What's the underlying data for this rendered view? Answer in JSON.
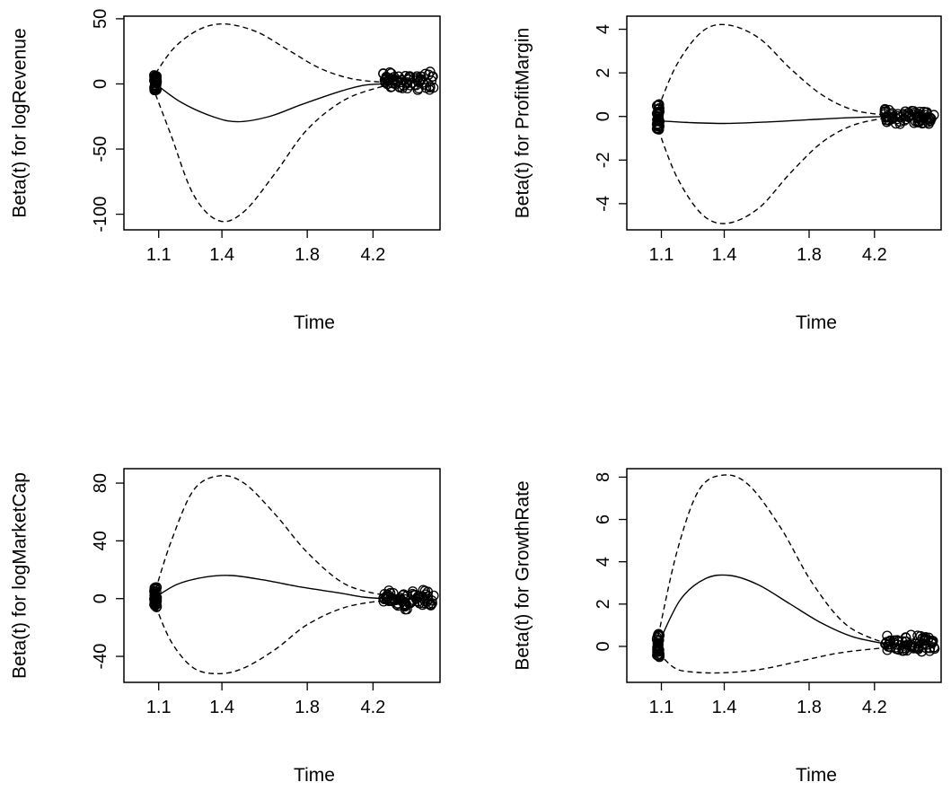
{
  "chart_data": [
    {
      "type": "line",
      "title": "",
      "xlabel": "Time",
      "ylabel": "Beta(t) for logRevenue",
      "x_tick_labels": [
        "1.1",
        "1.4",
        "1.8",
        "4.2"
      ],
      "y_ticks": [
        50,
        0,
        -50,
        -100
      ],
      "y_tick_labels": [
        "50",
        "0",
        "-50",
        "-100"
      ],
      "ylim": [
        -112,
        52
      ],
      "grid": false,
      "legend": "none",
      "series": [
        {
          "style": "solid",
          "points": [
            [
              0.1,
              0
            ],
            [
              0.18,
              -14
            ],
            [
              0.28,
              -25
            ],
            [
              0.36,
              -29
            ],
            [
              0.46,
              -25
            ],
            [
              0.56,
              -16
            ],
            [
              0.68,
              -6
            ],
            [
              0.76,
              -1
            ],
            [
              0.83,
              0
            ]
          ]
        },
        {
          "style": "dashed",
          "points": [
            [
              0.1,
              8
            ],
            [
              0.16,
              28
            ],
            [
              0.24,
              42
            ],
            [
              0.32,
              46
            ],
            [
              0.42,
              40
            ],
            [
              0.52,
              26
            ],
            [
              0.62,
              12
            ],
            [
              0.72,
              4
            ],
            [
              0.83,
              1
            ]
          ]
        },
        {
          "style": "dashed",
          "points": [
            [
              0.1,
              -8
            ],
            [
              0.15,
              -40
            ],
            [
              0.22,
              -85
            ],
            [
              0.3,
              -105
            ],
            [
              0.38,
              -98
            ],
            [
              0.48,
              -68
            ],
            [
              0.58,
              -35
            ],
            [
              0.7,
              -12
            ],
            [
              0.83,
              -1
            ]
          ]
        }
      ],
      "residual_points": {
        "cluster_at_x": 0.1,
        "cluster_y": [
          -6,
          7
        ],
        "tail_x": [
          0.82,
          0.98
        ],
        "tail_y": [
          -6,
          10
        ]
      }
    },
    {
      "type": "line",
      "title": "",
      "xlabel": "Time",
      "ylabel": "Beta(t) for ProfitMargin",
      "x_tick_labels": [
        "1.1",
        "1.4",
        "1.8",
        "4.2"
      ],
      "y_ticks": [
        4,
        2,
        0,
        -2,
        -4
      ],
      "y_tick_labels": [
        "4",
        "2",
        "0",
        "-2",
        "-4"
      ],
      "ylim": [
        -5.2,
        4.6
      ],
      "grid": false,
      "legend": "none",
      "series": [
        {
          "style": "solid",
          "points": [
            [
              0.1,
              -0.2
            ],
            [
              0.2,
              -0.28
            ],
            [
              0.32,
              -0.32
            ],
            [
              0.45,
              -0.25
            ],
            [
              0.58,
              -0.15
            ],
            [
              0.7,
              -0.06
            ],
            [
              0.83,
              0
            ]
          ]
        },
        {
          "style": "dashed",
          "points": [
            [
              0.1,
              0.4
            ],
            [
              0.16,
              2.4
            ],
            [
              0.24,
              3.9
            ],
            [
              0.32,
              4.2
            ],
            [
              0.42,
              3.6
            ],
            [
              0.52,
              2.2
            ],
            [
              0.62,
              1.0
            ],
            [
              0.72,
              0.3
            ],
            [
              0.83,
              0.05
            ]
          ]
        },
        {
          "style": "dashed",
          "points": [
            [
              0.1,
              -0.6
            ],
            [
              0.16,
              -2.8
            ],
            [
              0.24,
              -4.5
            ],
            [
              0.32,
              -4.9
            ],
            [
              0.42,
              -4.2
            ],
            [
              0.52,
              -2.6
            ],
            [
              0.62,
              -1.2
            ],
            [
              0.72,
              -0.4
            ],
            [
              0.83,
              -0.05
            ]
          ]
        }
      ],
      "residual_points": {
        "cluster_at_x": 0.1,
        "cluster_y": [
          -0.6,
          0.6
        ],
        "tail_x": [
          0.82,
          0.98
        ],
        "tail_y": [
          -0.5,
          0.4
        ]
      }
    },
    {
      "type": "line",
      "title": "",
      "xlabel": "Time",
      "ylabel": "Beta(t) for logMarketCap",
      "x_tick_labels": [
        "1.1",
        "1.4",
        "1.8",
        "4.2"
      ],
      "y_ticks": [
        80,
        40,
        0,
        -40
      ],
      "y_tick_labels": [
        "80",
        "40",
        "0",
        "-40"
      ],
      "ylim": [
        -58,
        90
      ],
      "grid": false,
      "legend": "none",
      "series": [
        {
          "style": "solid",
          "points": [
            [
              0.1,
              1
            ],
            [
              0.17,
              10
            ],
            [
              0.26,
              15
            ],
            [
              0.34,
              16
            ],
            [
              0.44,
              13
            ],
            [
              0.56,
              8
            ],
            [
              0.68,
              4
            ],
            [
              0.76,
              1
            ],
            [
              0.83,
              0
            ]
          ]
        },
        {
          "style": "dashed",
          "points": [
            [
              0.1,
              6
            ],
            [
              0.15,
              40
            ],
            [
              0.22,
              75
            ],
            [
              0.3,
              85
            ],
            [
              0.38,
              80
            ],
            [
              0.48,
              58
            ],
            [
              0.58,
              32
            ],
            [
              0.7,
              10
            ],
            [
              0.83,
              2
            ]
          ]
        },
        {
          "style": "dashed",
          "points": [
            [
              0.1,
              -5
            ],
            [
              0.15,
              -30
            ],
            [
              0.22,
              -48
            ],
            [
              0.3,
              -52
            ],
            [
              0.38,
              -48
            ],
            [
              0.48,
              -35
            ],
            [
              0.58,
              -18
            ],
            [
              0.7,
              -6
            ],
            [
              0.83,
              -1
            ]
          ]
        }
      ],
      "residual_points": {
        "cluster_at_x": 0.1,
        "cluster_y": [
          -6,
          8
        ],
        "tail_x": [
          0.82,
          0.98
        ],
        "tail_y": [
          -8,
          7
        ]
      }
    },
    {
      "type": "line",
      "title": "",
      "xlabel": "Time",
      "ylabel": "Beta(t) for GrowthRate",
      "x_tick_labels": [
        "1.1",
        "1.4",
        "1.8",
        "4.2"
      ],
      "y_ticks": [
        8,
        6,
        4,
        2,
        0
      ],
      "y_tick_labels": [
        "8",
        "6",
        "4",
        "2",
        "0"
      ],
      "ylim": [
        -1.7,
        8.4
      ],
      "grid": false,
      "legend": "none",
      "series": [
        {
          "style": "solid",
          "points": [
            [
              0.1,
              0.1
            ],
            [
              0.17,
              2.2
            ],
            [
              0.25,
              3.2
            ],
            [
              0.33,
              3.35
            ],
            [
              0.42,
              2.9
            ],
            [
              0.52,
              2.0
            ],
            [
              0.62,
              1.1
            ],
            [
              0.72,
              0.45
            ],
            [
              0.83,
              0.1
            ]
          ]
        },
        {
          "style": "dashed",
          "points": [
            [
              0.1,
              0.5
            ],
            [
              0.16,
              4.5
            ],
            [
              0.23,
              7.4
            ],
            [
              0.31,
              8.1
            ],
            [
              0.39,
              7.6
            ],
            [
              0.49,
              5.6
            ],
            [
              0.59,
              3.0
            ],
            [
              0.7,
              1.0
            ],
            [
              0.83,
              0.1
            ]
          ]
        },
        {
          "style": "dashed",
          "points": [
            [
              0.1,
              -0.3
            ],
            [
              0.15,
              -1.0
            ],
            [
              0.2,
              -1.2
            ],
            [
              0.3,
              -1.25
            ],
            [
              0.42,
              -1.1
            ],
            [
              0.55,
              -0.7
            ],
            [
              0.68,
              -0.3
            ],
            [
              0.83,
              -0.05
            ]
          ]
        }
      ],
      "residual_points": {
        "cluster_at_x": 0.1,
        "cluster_y": [
          -0.6,
          0.6
        ],
        "tail_x": [
          0.82,
          0.98
        ],
        "tail_y": [
          -0.4,
          0.6
        ]
      }
    }
  ]
}
